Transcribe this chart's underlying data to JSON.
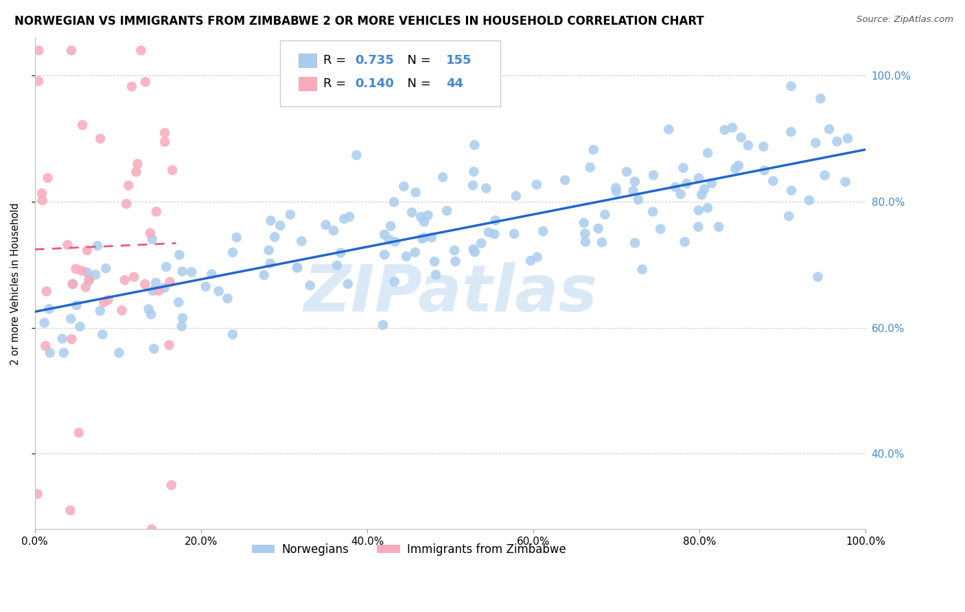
{
  "title": "NORWEGIAN VS IMMIGRANTS FROM ZIMBABWE 2 OR MORE VEHICLES IN HOUSEHOLD CORRELATION CHART",
  "source": "Source: ZipAtlas.com",
  "ylabel": "2 or more Vehicles in Household",
  "legend_label1": "Norwegians",
  "legend_label2": "Immigrants from Zimbabwe",
  "R1": 0.735,
  "N1": 155,
  "R2": 0.14,
  "N2": 44,
  "blue_dot_color": "#aaccee",
  "blue_line_color": "#2266cc",
  "pink_dot_color": "#f8aabb",
  "pink_line_color": "#ee5577",
  "pink_dash_color": "#ee8899",
  "watermark_text": "ZIPatlas",
  "watermark_color": "#cce0f5",
  "xlim": [
    0,
    100
  ],
  "ylim": [
    28,
    106
  ],
  "ytick_vals": [
    40,
    60,
    80,
    100
  ],
  "ytick_labels": [
    "40.0%",
    "60.0%",
    "80.0%",
    "100.0%"
  ],
  "xtick_vals": [
    0,
    20,
    40,
    60,
    80,
    100
  ],
  "xtick_labels": [
    "0.0%",
    "20.0%",
    "40.0%",
    "60.0%",
    "80.0%",
    "100.0%"
  ],
  "grid_color": "#cccccc",
  "title_fontsize": 12,
  "tick_fontsize": 11,
  "right_label_color": "#4488cc"
}
